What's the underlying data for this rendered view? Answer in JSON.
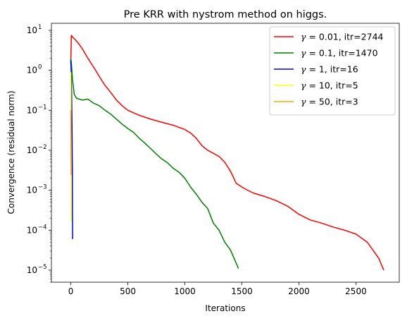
{
  "chart_data": {
    "type": "line",
    "title": "Pre KRR with nystrom method on higgs.",
    "xlabel": "Iterations",
    "ylabel": "Convergence (residual norm)",
    "xlim": [
      -170,
      2880
    ],
    "ylim": [
      5e-06,
      15
    ],
    "yscale": "log",
    "grid": false,
    "legend_position": "top-right",
    "x_ticks": [
      0,
      500,
      1000,
      1500,
      2000,
      2500
    ],
    "y_ticks": [
      {
        "value": 1e-05,
        "base": "10",
        "exp": "−5"
      },
      {
        "value": 0.0001,
        "base": "10",
        "exp": "−4"
      },
      {
        "value": 0.001,
        "base": "10",
        "exp": "−3"
      },
      {
        "value": 0.01,
        "base": "10",
        "exp": "−2"
      },
      {
        "value": 0.1,
        "base": "10",
        "exp": "−1"
      },
      {
        "value": 1,
        "base": "10",
        "exp": "0"
      },
      {
        "value": 10,
        "base": "10",
        "exp": "1"
      }
    ],
    "series": [
      {
        "name": "γ = 0.01, itr=2744",
        "legend_symbol": "γ",
        "legend_text": " = 0.01, itr=2744",
        "color": "#ff0000",
        "x": [
          0,
          5,
          15,
          30,
          60,
          100,
          150,
          200,
          250,
          300,
          350,
          400,
          450,
          500,
          600,
          700,
          800,
          900,
          1000,
          1050,
          1100,
          1150,
          1200,
          1300,
          1350,
          1400,
          1450,
          1500,
          1550,
          1600,
          1700,
          1800,
          1900,
          2000,
          2100,
          2200,
          2300,
          2400,
          2500,
          2600,
          2700,
          2744
        ],
        "y": [
          1.5,
          7.5,
          6.8,
          6.2,
          5.0,
          3.5,
          2.0,
          1.2,
          0.7,
          0.42,
          0.28,
          0.18,
          0.13,
          0.1,
          0.075,
          0.06,
          0.05,
          0.042,
          0.033,
          0.027,
          0.02,
          0.013,
          0.01,
          0.007,
          0.005,
          0.003,
          0.0015,
          0.0012,
          0.001,
          0.00085,
          0.0007,
          0.00055,
          0.0004,
          0.00025,
          0.00018,
          0.00015,
          0.00012,
          0.0001,
          8e-05,
          5e-05,
          2e-05,
          1e-05
        ]
      },
      {
        "name": "γ = 0.1, itr=1470",
        "legend_symbol": "γ",
        "legend_text": " = 0.1, itr=1470",
        "color": "#008000",
        "x": [
          0,
          5,
          15,
          30,
          50,
          100,
          150,
          200,
          250,
          300,
          350,
          400,
          450,
          500,
          550,
          600,
          650,
          700,
          750,
          800,
          850,
          900,
          950,
          1000,
          1050,
          1100,
          1150,
          1200,
          1250,
          1300,
          1350,
          1400,
          1450,
          1470
        ],
        "y": [
          2.0,
          1.5,
          0.6,
          0.25,
          0.2,
          0.18,
          0.19,
          0.15,
          0.13,
          0.1,
          0.08,
          0.06,
          0.045,
          0.035,
          0.028,
          0.02,
          0.015,
          0.011,
          0.008,
          0.006,
          0.0048,
          0.0035,
          0.0028,
          0.002,
          0.0012,
          0.0008,
          0.0005,
          0.00035,
          0.00015,
          0.0001,
          5e-05,
          3.2e-05,
          1.5e-05,
          1.1e-05
        ]
      },
      {
        "name": "γ = 1, itr=16",
        "legend_symbol": "γ",
        "legend_text": " = 1, itr=16",
        "color": "#0000ff",
        "x": [
          0,
          3,
          5,
          7,
          9,
          11,
          13,
          14,
          15,
          16
        ],
        "y": [
          1.8,
          1.0,
          0.6,
          0.3,
          0.1,
          0.03,
          0.005,
          0.003,
          0.0002,
          6e-05
        ]
      },
      {
        "name": "γ = 10, itr=5",
        "legend_symbol": "γ",
        "legend_text": " = 10, itr=5",
        "color": "#ffff00",
        "x": [
          0,
          1,
          2,
          3,
          4,
          5
        ],
        "y": [
          0.9,
          0.3,
          0.02,
          0.0015,
          0.0003,
          0.00016
        ]
      },
      {
        "name": "γ = 50, itr=3",
        "legend_symbol": "γ",
        "legend_text": " = 50, itr=3",
        "color": "#ffa500",
        "x": [
          0,
          1,
          2,
          3
        ],
        "y": [
          0.1,
          0.05,
          0.01,
          0.0024
        ]
      }
    ]
  }
}
